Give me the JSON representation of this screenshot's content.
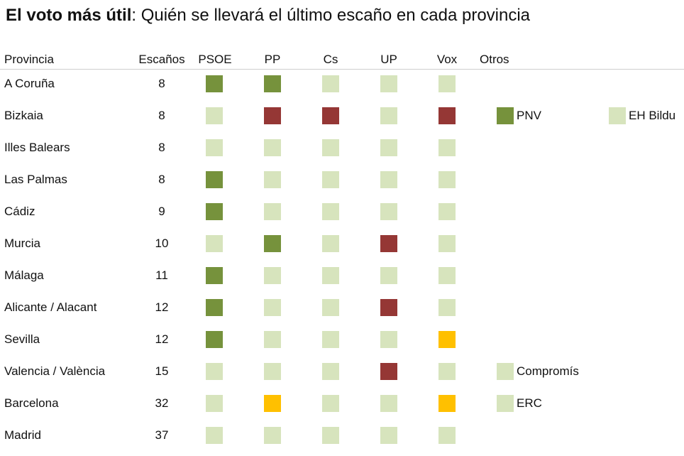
{
  "title": {
    "bold": "El voto más útil",
    "rest": ": Quién se llevará el último escaño en cada provincia"
  },
  "colors": {
    "win": "#76923c",
    "loss": "#953735",
    "tossup": "#ffc000",
    "none": "#d7e4bd"
  },
  "chart_data": {
    "type": "table",
    "columns": [
      "Provincia",
      "Escaños",
      "PSOE",
      "PP",
      "Cs",
      "UP",
      "Vox",
      "Otros"
    ],
    "parties": [
      "PSOE",
      "PP",
      "Cs",
      "UP",
      "Vox"
    ],
    "rows": [
      {
        "provincia": "A Coruña",
        "escanos": "8",
        "status": [
          "win",
          "win",
          "none",
          "none",
          "none"
        ],
        "otros": []
      },
      {
        "provincia": "Bizkaia",
        "escanos": "8",
        "status": [
          "none",
          "loss",
          "loss",
          "none",
          "loss"
        ],
        "otros": [
          {
            "name": "PNV",
            "status": "win"
          },
          {
            "name": "EH Bildu",
            "status": "none"
          }
        ]
      },
      {
        "provincia": "Illes Balears",
        "escanos": "8",
        "status": [
          "none",
          "none",
          "none",
          "none",
          "none"
        ],
        "otros": []
      },
      {
        "provincia": "Las Palmas",
        "escanos": "8",
        "status": [
          "win",
          "none",
          "none",
          "none",
          "none"
        ],
        "otros": []
      },
      {
        "provincia": "Cádiz",
        "escanos": "9",
        "status": [
          "win",
          "none",
          "none",
          "none",
          "none"
        ],
        "otros": []
      },
      {
        "provincia": "Murcia",
        "escanos": "10",
        "status": [
          "none",
          "win",
          "none",
          "loss",
          "none"
        ],
        "otros": []
      },
      {
        "provincia": "Málaga",
        "escanos": "11",
        "status": [
          "win",
          "none",
          "none",
          "none",
          "none"
        ],
        "otros": []
      },
      {
        "provincia": "Alicante / Alacant",
        "escanos": "12",
        "status": [
          "win",
          "none",
          "none",
          "loss",
          "none"
        ],
        "otros": []
      },
      {
        "provincia": "Sevilla",
        "escanos": "12",
        "status": [
          "win",
          "none",
          "none",
          "none",
          "tossup"
        ],
        "otros": []
      },
      {
        "provincia": "Valencia / València",
        "escanos": "15",
        "status": [
          "none",
          "none",
          "none",
          "loss",
          "none"
        ],
        "otros": [
          {
            "name": "Compromís",
            "status": "none"
          }
        ]
      },
      {
        "provincia": "Barcelona",
        "escanos": "32",
        "status": [
          "none",
          "tossup",
          "none",
          "none",
          "tossup"
        ],
        "otros": [
          {
            "name": "ERC",
            "status": "none"
          }
        ]
      },
      {
        "provincia": "Madrid",
        "escanos": "37",
        "status": [
          "none",
          "none",
          "none",
          "none",
          "none"
        ],
        "otros": []
      }
    ]
  }
}
